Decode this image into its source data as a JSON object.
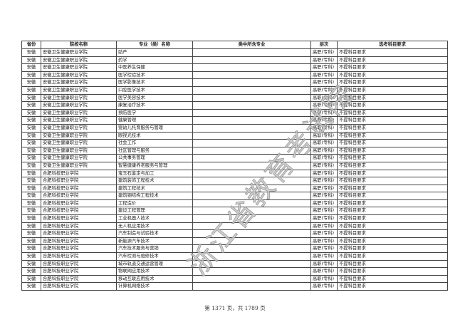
{
  "table": {
    "headers": [
      "省份",
      "院校名称",
      "专业（类）名称",
      "类中所含专业",
      "层次",
      "选考科目要求"
    ],
    "rows": [
      [
        "安徽",
        "安徽卫生健康职业学院",
        "助产",
        "",
        "高职(专科)",
        "不提科目要求"
      ],
      [
        "安徽",
        "安徽卫生健康职业学院",
        "药学",
        "",
        "高职(专科)",
        "不提科目要求"
      ],
      [
        "安徽",
        "安徽卫生健康职业学院",
        "中医养生保健",
        "",
        "高职(专科)",
        "不提科目要求"
      ],
      [
        "安徽",
        "安徽卫生健康职业学院",
        "医学检验技术",
        "",
        "高职(专科)",
        "不提科目要求"
      ],
      [
        "安徽",
        "安徽卫生健康职业学院",
        "医学影像技术",
        "",
        "高职(专科)",
        "不提科目要求"
      ],
      [
        "安徽",
        "安徽卫生健康职业学院",
        "口腔医学技术",
        "",
        "高职(专科)",
        "不提科目要求"
      ],
      [
        "安徽",
        "安徽卫生健康职业学院",
        "医学美容技术",
        "",
        "高职(专科)",
        "不提科目要求"
      ],
      [
        "安徽",
        "安徽卫生健康职业学院",
        "康复治疗技术",
        "",
        "高职(专科)",
        "不提科目要求"
      ],
      [
        "安徽",
        "安徽卫生健康职业学院",
        "预防医学",
        "",
        "高职(专科)",
        "不提科目要求"
      ],
      [
        "安徽",
        "安徽卫生健康职业学院",
        "健康管理",
        "",
        "高职(专科)",
        "不提科目要求"
      ],
      [
        "安徽",
        "安徽卫生健康职业学院",
        "婴幼儿托育服务与管理",
        "",
        "高职(专科)",
        "不提科目要求"
      ],
      [
        "安徽",
        "安徽卫生健康职业学院",
        "眼视光技术",
        "",
        "高职(专科)",
        "不提科目要求"
      ],
      [
        "安徽",
        "安徽卫生健康职业学院",
        "社会工作",
        "",
        "高职(专科)",
        "不提科目要求"
      ],
      [
        "安徽",
        "安徽卫生健康职业学院",
        "社区管理与服务",
        "",
        "高职(专科)",
        "不提科目要求"
      ],
      [
        "安徽",
        "安徽卫生健康职业学院",
        "公共事务管理",
        "",
        "高职(专科)",
        "不提科目要求"
      ],
      [
        "安徽",
        "安徽卫生健康职业学院",
        "智慧健康养老服务与管理",
        "",
        "高职(专科)",
        "不提科目要求"
      ],
      [
        "安徽",
        "合肥科技职业学院",
        "宝玉石鉴定与加工",
        "",
        "高职(专科)",
        "不提科目要求"
      ],
      [
        "安徽",
        "合肥科技职业学院",
        "建筑装饰工程技术",
        "",
        "高职(专科)",
        "不提科目要求"
      ],
      [
        "安徽",
        "合肥科技职业学院",
        "建筑工程技术",
        "",
        "高职(专科)",
        "不提科目要求"
      ],
      [
        "安徽",
        "合肥科技职业学院",
        "建筑钢结构工程技术",
        "",
        "高职(专科)",
        "不提科目要求"
      ],
      [
        "安徽",
        "合肥科技职业学院",
        "工程造价",
        "",
        "高职(专科)",
        "不提科目要求"
      ],
      [
        "安徽",
        "合肥科技职业学院",
        "建设工程管理",
        "",
        "高职(专科)",
        "不提科目要求"
      ],
      [
        "安徽",
        "合肥科技职业学院",
        "工业机器人技术",
        "",
        "高职(专科)",
        "不提科目要求"
      ],
      [
        "安徽",
        "合肥科技职业学院",
        "无人机应用技术",
        "",
        "高职(专科)",
        "不提科目要求"
      ],
      [
        "安徽",
        "合肥科技职业学院",
        "汽车制造与试验技术",
        "",
        "高职(专科)",
        "不提科目要求"
      ],
      [
        "安徽",
        "合肥科技职业学院",
        "新能源汽车技术",
        "",
        "高职(专科)",
        "不提科目要求"
      ],
      [
        "安徽",
        "合肥科技职业学院",
        "汽车技术服务与营销",
        "",
        "高职(专科)",
        "不提科目要求"
      ],
      [
        "安徽",
        "合肥科技职业学院",
        "汽车检测与维修技术",
        "",
        "高职(专科)",
        "不提科目要求"
      ],
      [
        "安徽",
        "合肥科技职业学院",
        "城市轨道交通运营管理",
        "",
        "高职(专科)",
        "不提科目要求"
      ],
      [
        "安徽",
        "合肥科技职业学院",
        "物联网应用技术",
        "",
        "高职(专科)",
        "不提科目要求"
      ],
      [
        "安徽",
        "合肥科技职业学院",
        "移动互联应用技术",
        "",
        "高职(专科)",
        "不提科目要求"
      ],
      [
        "安徽",
        "合肥科技职业学院",
        "计算机网络技术",
        "",
        "高职(专科)",
        "不提科目要求"
      ]
    ]
  },
  "watermark": "浙江省教育考试院",
  "footer": "第 1371 页，共 1789 页"
}
